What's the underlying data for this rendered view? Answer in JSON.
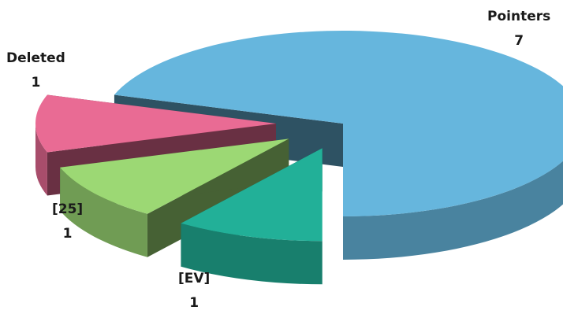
{
  "chart_data": {
    "type": "pie",
    "style": "exploded 3d pie",
    "slices": [
      {
        "label": "Pointers",
        "value": 7,
        "color": "#66b6dd"
      },
      {
        "label": "[EV]",
        "value": 1,
        "color": "#22b098"
      },
      {
        "label": "[25]",
        "value": 1,
        "color": "#9cd874"
      },
      {
        "label": "Deleted",
        "value": 1,
        "color": "#e96b94"
      }
    ]
  }
}
